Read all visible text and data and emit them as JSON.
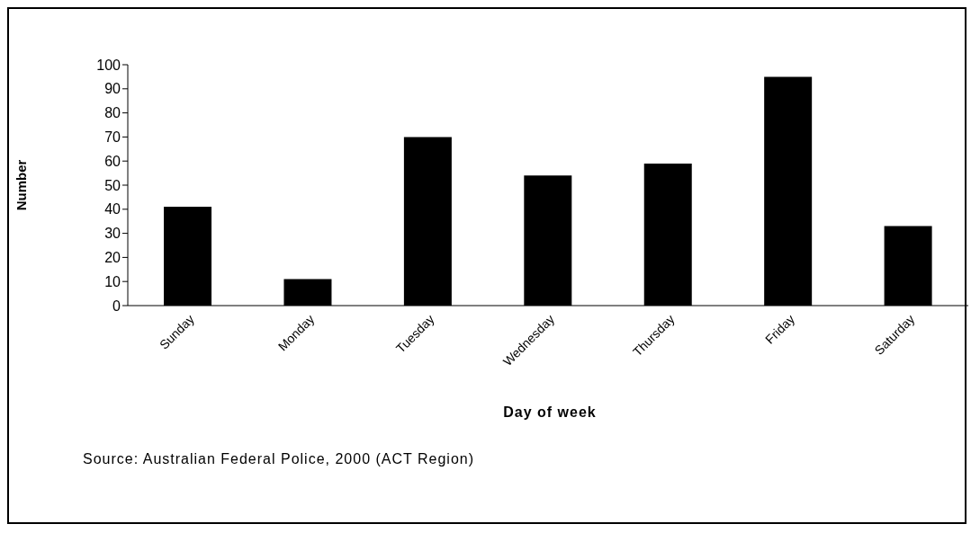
{
  "chart_data": {
    "type": "bar",
    "xlabel": "Day of week",
    "ylabel": "Number",
    "categories": [
      "Sunday",
      "Monday",
      "Tuesday",
      "Wednesday",
      "Thursday",
      "Friday",
      "Saturday"
    ],
    "values": [
      41,
      11,
      70,
      54,
      59,
      95,
      33
    ],
    "color": "#000000",
    "ylim": [
      0,
      100
    ],
    "yticks": [
      0,
      10,
      20,
      30,
      40,
      50,
      60,
      70,
      80,
      90,
      100
    ],
    "grid": false,
    "legend": false,
    "annotations": [
      "Source: Australian Federal Police, 2000 (ACT Region)"
    ]
  }
}
